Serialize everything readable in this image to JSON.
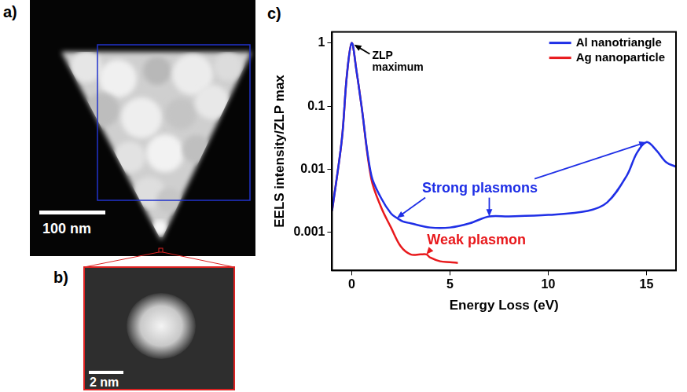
{
  "panels": [
    {
      "panel_label": "a)",
      "scale_bar": "100 nm"
    },
    {
      "panel_label": "b)",
      "scale_bar": "2 nm"
    }
  ],
  "chart_data": {
    "type": "line",
    "panel_label": "c)",
    "x_label": "Energy Loss (eV)",
    "y_label": "EELS intensity/ZLP max",
    "log": "y",
    "grid": false,
    "legend": "upper right",
    "xlim": [
      -1,
      16.5
    ],
    "xticks": [
      0,
      5,
      10,
      15
    ],
    "ylim": [
      0.00025,
      1.5
    ],
    "yticks": [
      0.001,
      0.01,
      0.1,
      1
    ],
    "series": [
      {
        "name": "Al nanotriangle",
        "color": "#1f2fe6",
        "x": [
          -1,
          -0.5,
          -0.25,
          0,
          0.25,
          0.5,
          1,
          1.5,
          2,
          2.3,
          2.6,
          3,
          4,
          5,
          6,
          7,
          8,
          10,
          12,
          13,
          14,
          14.5,
          15,
          15.5,
          16,
          16.5
        ],
        "values": [
          0.0022,
          0.03,
          0.3,
          1,
          0.35,
          0.1,
          0.008,
          0.0035,
          0.002,
          0.0017,
          0.0015,
          0.0014,
          0.0012,
          0.0012,
          0.0014,
          0.0018,
          0.0018,
          0.0019,
          0.0022,
          0.003,
          0.008,
          0.018,
          0.027,
          0.02,
          0.013,
          0.011
        ]
      },
      {
        "name": "Ag nanoparticle",
        "color": "#e8191c",
        "x": [
          -1,
          -0.5,
          -0.25,
          0,
          0.25,
          0.5,
          1,
          1.5,
          2,
          2.5,
          3,
          3.5,
          3.8,
          4,
          4.5,
          5,
          5.4
        ],
        "values": [
          0.0022,
          0.03,
          0.3,
          1,
          0.35,
          0.1,
          0.007,
          0.0025,
          0.0012,
          0.0006,
          0.00045,
          0.00045,
          0.00045,
          0.0004,
          0.00035,
          0.00034,
          0.00033
        ]
      }
    ],
    "annotations": [
      {
        "text": "ZLP maximum",
        "color": "#000000",
        "points_to": [
          {
            "x": 0,
            "y": 1
          }
        ]
      },
      {
        "text": "Strong plasmons",
        "color": "#1f2fe6",
        "points_to": [
          {
            "x": 2.3,
            "y": 0.0017
          },
          {
            "x": 7,
            "y": 0.0018
          },
          {
            "x": 15,
            "y": 0.027
          }
        ]
      },
      {
        "text": "Weak plasmon",
        "color": "#e8191c",
        "points_to": [
          {
            "x": 3.8,
            "y": 0.00045
          }
        ]
      }
    ]
  }
}
